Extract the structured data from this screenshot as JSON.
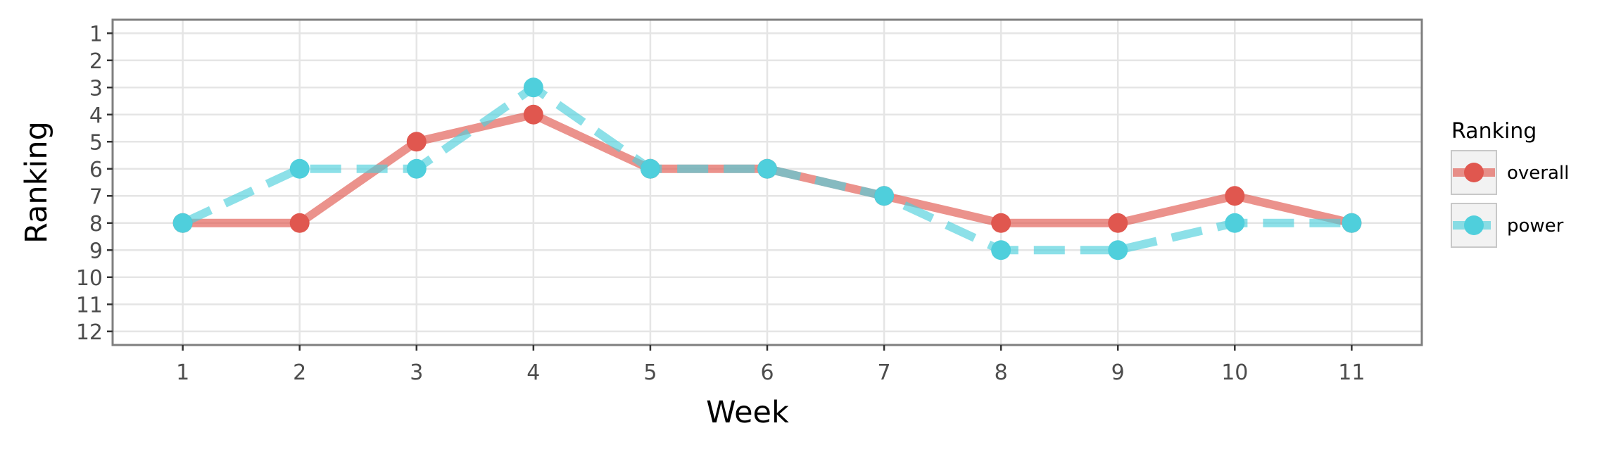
{
  "chart_data": {
    "type": "line",
    "title": "",
    "xlabel": "Week",
    "ylabel": "Ranking",
    "x": [
      1,
      2,
      3,
      4,
      5,
      6,
      7,
      8,
      9,
      10,
      11
    ],
    "xlim": [
      0.4,
      11.6
    ],
    "ylim": [
      12.5,
      0.5
    ],
    "y_reversed": true,
    "y_ticks": [
      1,
      2,
      3,
      4,
      5,
      6,
      7,
      8,
      9,
      10,
      11,
      12
    ],
    "grid": true,
    "legend": {
      "title": "Ranking",
      "position": "right"
    },
    "series": [
      {
        "name": "overall",
        "values": [
          8,
          8,
          5,
          4,
          6,
          6,
          7,
          8,
          8,
          7,
          8
        ],
        "color": "#e0574f",
        "line_style": "solid"
      },
      {
        "name": "power",
        "values": [
          8,
          6,
          6,
          3,
          6,
          6,
          7,
          9,
          9,
          8,
          8
        ],
        "color": "#4fcfdc",
        "line_style": "dashed"
      }
    ]
  }
}
